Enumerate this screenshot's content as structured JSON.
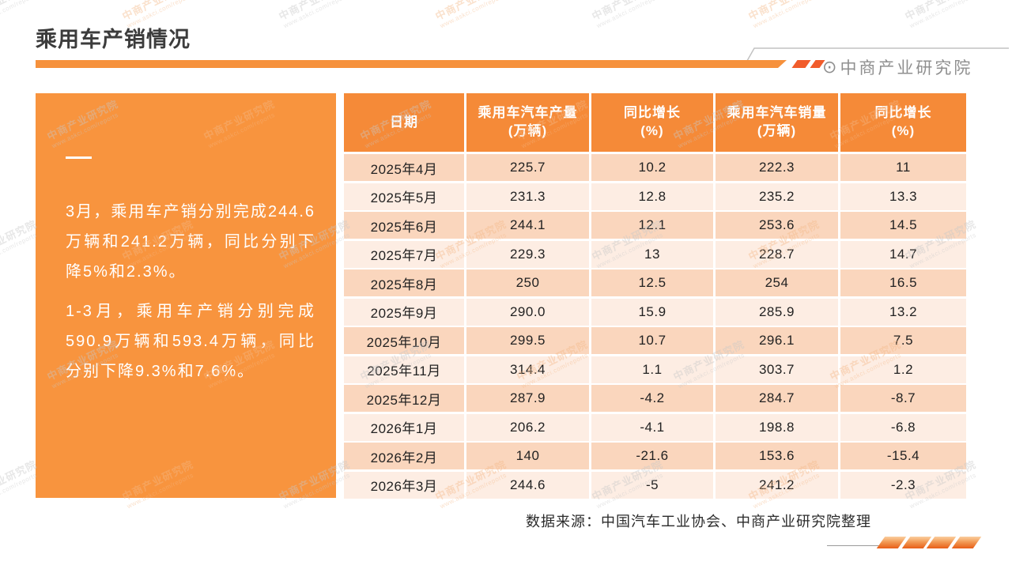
{
  "page": {
    "title": "乘用车产销情况",
    "brand": {
      "logo_mark": "⊙",
      "name": "中商产业研究院"
    },
    "source_note": "数据来源：中国汽车工业协会、中商产业研究院整理"
  },
  "highlight_panel": {
    "paragraphs": [
      "3月，乘用车产销分别完成244.6万辆和241.2万辆，同比分别下降5%和2.3%。",
      "1-3月，乘用车产销分别完成590.9万辆和593.4万辆，同比分别下降9.3%和7.6%。"
    ]
  },
  "table": {
    "headers": [
      "日期",
      "乘用车汽车产量\n(万辆)",
      "同比增长\n(%)",
      "乘用车汽车销量\n(万辆)",
      "同比增长\n(%)"
    ],
    "rows": [
      [
        "2025年4月",
        "225.7",
        "10.2",
        "222.3",
        "11"
      ],
      [
        "2025年5月",
        "231.3",
        "12.8",
        "235.2",
        "13.3"
      ],
      [
        "2025年6月",
        "244.1",
        "12.1",
        "253.6",
        "14.5"
      ],
      [
        "2025年7月",
        "229.3",
        "13",
        "228.7",
        "14.7"
      ],
      [
        "2025年8月",
        "250",
        "12.5",
        "254",
        "16.5"
      ],
      [
        "2025年9月",
        "290.0",
        "15.9",
        "285.9",
        "13.2"
      ],
      [
        "2025年10月",
        "299.5",
        "10.7",
        "296.1",
        "7.5"
      ],
      [
        "2025年11月",
        "314.4",
        "1.1",
        "303.7",
        "1.2"
      ],
      [
        "2025年12月",
        "287.9",
        "-4.2",
        "284.7",
        "-8.7"
      ],
      [
        "2026年1月",
        "206.2",
        "-4.1",
        "198.8",
        "-6.8"
      ],
      [
        "2026年2月",
        "140",
        "-21.6",
        "153.6",
        "-15.4"
      ],
      [
        "2026年3月",
        "244.6",
        "-5",
        "241.2",
        "-2.3"
      ]
    ]
  },
  "watermark": {
    "line1": "中商产业研究院",
    "line2": "www.askci.com/reports"
  },
  "colors": {
    "accent_orange": "#f8943e",
    "header_orange": "#f58a38",
    "divider_orange": "#f6913c",
    "slash_red": "#f15c2b",
    "row_odd": "#fad6bd",
    "row_even": "#fdede3",
    "logo_gray": "#8f8f8f",
    "watermark_gray": "#c8c8c8",
    "watermark_orange": "#f4b887"
  }
}
